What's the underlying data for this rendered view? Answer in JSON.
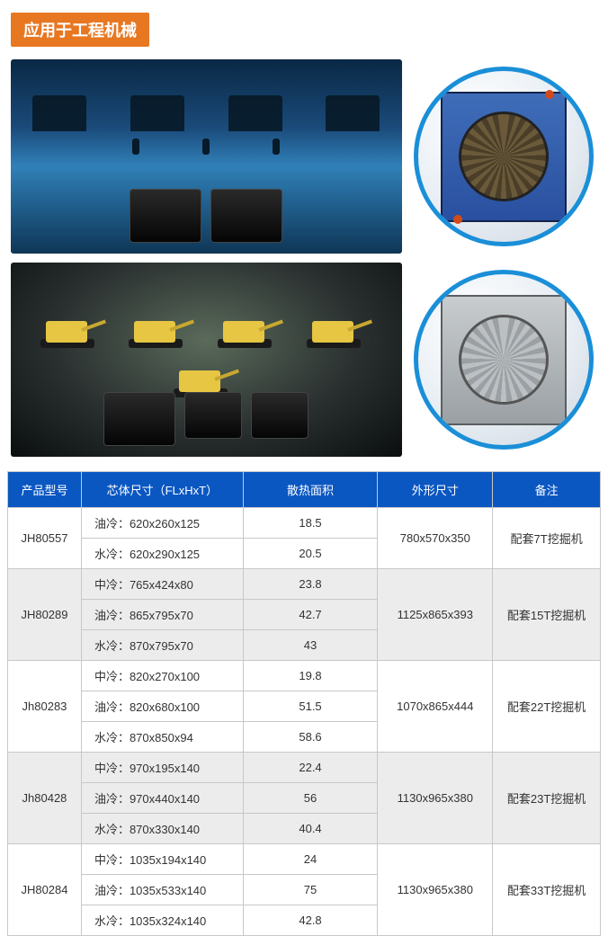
{
  "title": "应用于工程机械",
  "colors": {
    "title_bg": "#e87722",
    "header_bg": "#0b57c2",
    "circle_border": "#1a8fd8",
    "shade_row": "#ececec"
  },
  "table": {
    "headers": {
      "model": "产品型号",
      "core_dim": "芯体尺寸（FLxHxT）",
      "area": "散热面积",
      "outer_dim": "外形尺寸",
      "note": "备注"
    },
    "groups": [
      {
        "model": "JH80557",
        "outer": "780x570x350",
        "note": "配套7T挖掘机",
        "shaded": false,
        "rows": [
          {
            "dim": "油冷：620x260x125",
            "area": "18.5"
          },
          {
            "dim": "水冷：620x290x125",
            "area": "20.5"
          }
        ]
      },
      {
        "model": "JH80289",
        "outer": "1125x865x393",
        "note": "配套15T挖掘机",
        "shaded": true,
        "rows": [
          {
            "dim": "中冷：765x424x80",
            "area": "23.8"
          },
          {
            "dim": "油冷：865x795x70",
            "area": "42.7"
          },
          {
            "dim": "水冷：870x795x70",
            "area": "43"
          }
        ]
      },
      {
        "model": "Jh80283",
        "outer": "1070x865x444",
        "note": "配套22T挖掘机",
        "shaded": false,
        "rows": [
          {
            "dim": "中冷：820x270x100",
            "area": "19.8"
          },
          {
            "dim": "油冷：820x680x100",
            "area": "51.5"
          },
          {
            "dim": "水冷：870x850x94",
            "area": "58.6"
          }
        ]
      },
      {
        "model": "Jh80428",
        "outer": "1130x965x380",
        "note": "配套23T挖掘机",
        "shaded": true,
        "rows": [
          {
            "dim": "中冷：970x195x140",
            "area": "22.4"
          },
          {
            "dim": "油冷：970x440x140",
            "area": "56"
          },
          {
            "dim": "水冷：870x330x140",
            "area": "40.4"
          }
        ]
      },
      {
        "model": "JH80284",
        "outer": "1130x965x380",
        "note": "配套33T挖掘机",
        "shaded": false,
        "rows": [
          {
            "dim": "中冷：1035x194x140",
            "area": "24"
          },
          {
            "dim": "油冷：1035x533x140",
            "area": "75"
          },
          {
            "dim": "水冷：1035x324x140",
            "area": "42.8"
          }
        ]
      }
    ]
  }
}
